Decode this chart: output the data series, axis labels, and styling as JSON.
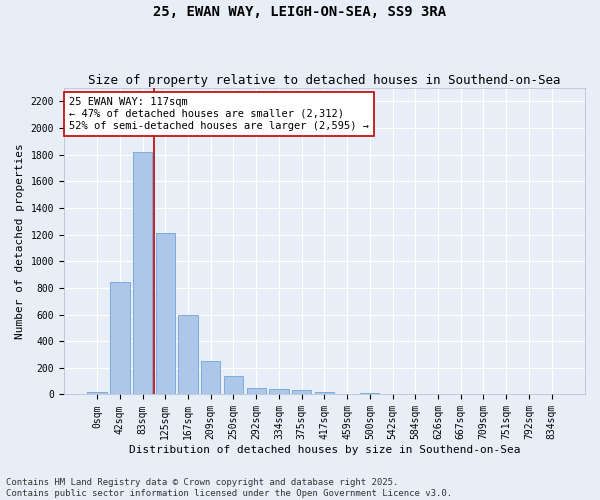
{
  "title": "25, EWAN WAY, LEIGH-ON-SEA, SS9 3RA",
  "subtitle": "Size of property relative to detached houses in Southend-on-Sea",
  "xlabel": "Distribution of detached houses by size in Southend-on-Sea",
  "ylabel": "Number of detached properties",
  "footnote1": "Contains HM Land Registry data © Crown copyright and database right 2025.",
  "footnote2": "Contains public sector information licensed under the Open Government Licence v3.0.",
  "bar_labels": [
    "0sqm",
    "42sqm",
    "83sqm",
    "125sqm",
    "167sqm",
    "209sqm",
    "250sqm",
    "292sqm",
    "334sqm",
    "375sqm",
    "417sqm",
    "459sqm",
    "500sqm",
    "542sqm",
    "584sqm",
    "626sqm",
    "667sqm",
    "709sqm",
    "751sqm",
    "792sqm",
    "834sqm"
  ],
  "bar_values": [
    20,
    845,
    1820,
    1210,
    600,
    255,
    140,
    45,
    40,
    30,
    15,
    0,
    10,
    0,
    0,
    0,
    0,
    0,
    0,
    0,
    0
  ],
  "bar_color": "#aec6e8",
  "bar_edge_color": "#5b9bd5",
  "background_color": "#e8eef7",
  "grid_color": "#ffffff",
  "vline_x": 2.5,
  "vline_color": "#c00000",
  "annotation_title": "25 EWAN WAY: 117sqm",
  "annotation_line1": "← 47% of detached houses are smaller (2,312)",
  "annotation_line2": "52% of semi-detached houses are larger (2,595) →",
  "annotation_box_color": "#ffffff",
  "annotation_box_edge_color": "#c00000",
  "ylim": [
    0,
    2300
  ],
  "yticks": [
    0,
    200,
    400,
    600,
    800,
    1000,
    1200,
    1400,
    1600,
    1800,
    2000,
    2200
  ],
  "title_fontsize": 10,
  "subtitle_fontsize": 9,
  "axis_label_fontsize": 8,
  "tick_fontsize": 7,
  "annotation_fontsize": 7.5,
  "footnote_fontsize": 6.5
}
